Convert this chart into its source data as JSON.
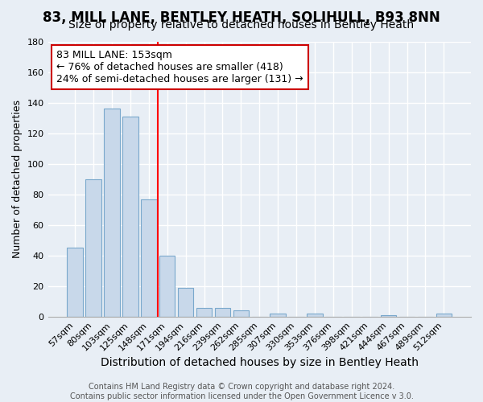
{
  "title": "83, MILL LANE, BENTLEY HEATH, SOLIHULL, B93 8NN",
  "subtitle": "Size of property relative to detached houses in Bentley Heath",
  "xlabel": "Distribution of detached houses by size in Bentley Heath",
  "ylabel": "Number of detached properties",
  "footer_lines": [
    "Contains HM Land Registry data © Crown copyright and database right 2024.",
    "Contains public sector information licensed under the Open Government Licence v 3.0."
  ],
  "bin_labels": [
    "57sqm",
    "80sqm",
    "103sqm",
    "125sqm",
    "148sqm",
    "171sqm",
    "194sqm",
    "216sqm",
    "239sqm",
    "262sqm",
    "285sqm",
    "307sqm",
    "330sqm",
    "353sqm",
    "376sqm",
    "398sqm",
    "421sqm",
    "444sqm",
    "467sqm",
    "489sqm",
    "512sqm"
  ],
  "bar_values": [
    45,
    90,
    136,
    131,
    77,
    40,
    19,
    6,
    6,
    4,
    0,
    2,
    0,
    2,
    0,
    0,
    0,
    1,
    0,
    0,
    2
  ],
  "bar_color": "#c8d8ea",
  "bar_edge_color": "#7aa8cc",
  "vline_x": 4.5,
  "vline_color": "red",
  "annotation_text": "83 MILL LANE: 153sqm\n← 76% of detached houses are smaller (418)\n24% of semi-detached houses are larger (131) →",
  "annotation_box_color": "white",
  "annotation_box_edge": "#cc0000",
  "ylim": [
    0,
    180
  ],
  "yticks": [
    0,
    20,
    40,
    60,
    80,
    100,
    120,
    140,
    160,
    180
  ],
  "background_color": "#e8eef5",
  "plot_bg_color": "#e8eef5",
  "grid_color": "#ffffff",
  "title_fontsize": 12,
  "subtitle_fontsize": 10,
  "xlabel_fontsize": 10,
  "ylabel_fontsize": 9,
  "tick_fontsize": 8,
  "annotation_fontsize": 9,
  "footer_fontsize": 7
}
